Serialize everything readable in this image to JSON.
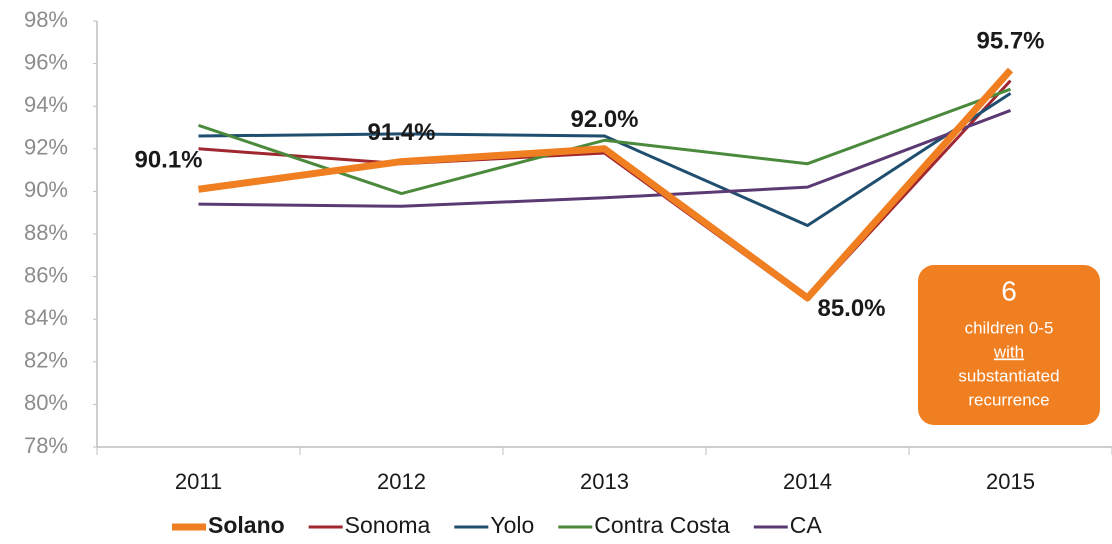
{
  "chart_data": {
    "type": "line",
    "categories": [
      "2011",
      "2012",
      "2013",
      "2014",
      "2015"
    ],
    "series": [
      {
        "name": "Solano",
        "color": "#f07f22",
        "emphasis": true,
        "values": [
          90.1,
          91.4,
          92.0,
          85.0,
          95.7
        ],
        "value_labels": [
          "90.1%",
          "91.4%",
          "92.0%",
          "85.0%",
          "95.7%"
        ]
      },
      {
        "name": "Sonoma",
        "color": "#a0262f",
        "values": [
          92.0,
          91.3,
          91.8,
          84.9,
          95.2
        ]
      },
      {
        "name": "Yolo",
        "color": "#1f4e6e",
        "values": [
          92.6,
          92.7,
          92.6,
          88.4,
          94.6
        ]
      },
      {
        "name": "Contra Costa",
        "color": "#4b8a3c",
        "values": [
          93.1,
          89.9,
          92.4,
          91.3,
          94.8
        ]
      },
      {
        "name": "CA",
        "color": "#5b3a73",
        "values": [
          89.4,
          89.3,
          89.7,
          90.2,
          93.8
        ]
      }
    ],
    "ylim": [
      78,
      98
    ],
    "yticks": [
      {
        "value": 78,
        "label": "78%"
      },
      {
        "value": 80,
        "label": "80%"
      },
      {
        "value": 82,
        "label": "82%"
      },
      {
        "value": 84,
        "label": "84%"
      },
      {
        "value": 86,
        "label": "86%"
      },
      {
        "value": 88,
        "label": "88%"
      },
      {
        "value": 90,
        "label": "90%"
      },
      {
        "value": 92,
        "label": "92%"
      },
      {
        "value": 94,
        "label": "94%"
      },
      {
        "value": 96,
        "label": "96%"
      },
      {
        "value": 98,
        "label": "98%"
      }
    ],
    "grid": false,
    "legend": "bottom",
    "callout": {
      "number": "6",
      "lines": [
        "children 0-5",
        "with",
        "substantiated",
        "recurrence"
      ],
      "color": "#f07f22"
    }
  }
}
